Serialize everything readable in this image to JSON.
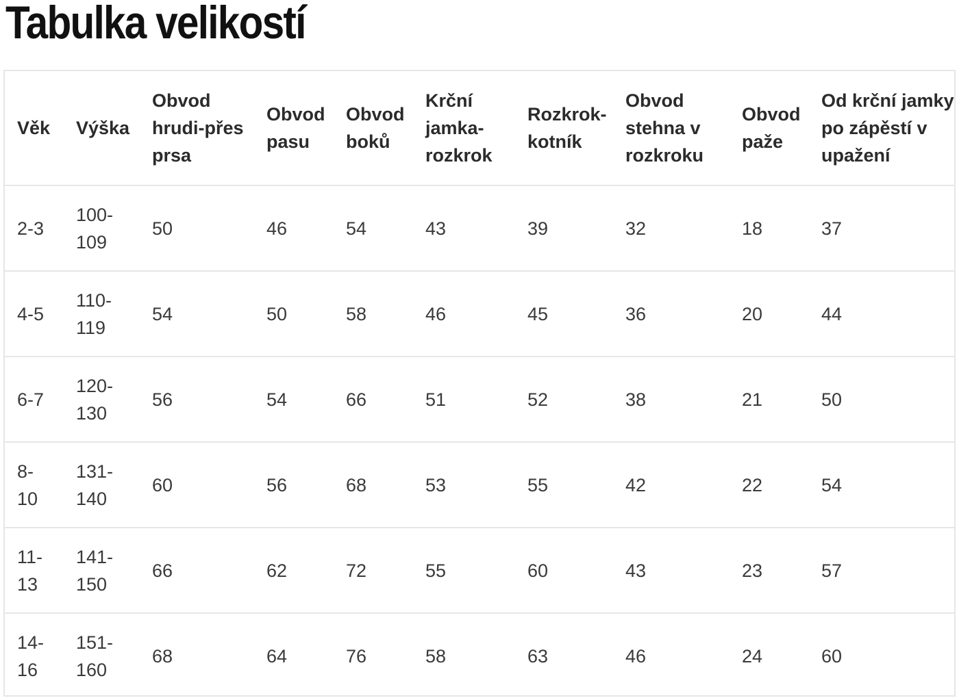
{
  "title": "Tabulka velikostí",
  "table": {
    "headers": [
      "Věk",
      "Výška",
      "Obvod hrudi-přes prsa",
      "Obvod pasu",
      "Obvod boků",
      "Krční jamka-rozkrok",
      "Rozkrok-kotník",
      "Obvod stehna v rozkroku",
      "Obvod paže",
      "Od krční jamky po zápěstí v upažení"
    ],
    "header_lines": [
      [
        "Věk"
      ],
      [
        "Výška"
      ],
      [
        "Obvod",
        "hrudi-přes",
        "prsa"
      ],
      [
        "Obvod",
        "pasu"
      ],
      [
        "Obvod",
        "boků"
      ],
      [
        "Krční",
        "jamka-",
        "rozkrok"
      ],
      [
        "Rozkrok-",
        "kotník"
      ],
      [
        "Obvod",
        "stehna v",
        "rozkroku"
      ],
      [
        "Obvod",
        "paže"
      ],
      [
        "Od krční jamky",
        "po zápěstí v",
        "upažení"
      ]
    ],
    "rows": [
      [
        "2-3",
        "100-109",
        "50",
        "46",
        "54",
        "43",
        "39",
        "32",
        "18",
        "37"
      ],
      [
        "4-5",
        "110-119",
        "54",
        "50",
        "58",
        "46",
        "45",
        "36",
        "20",
        "44"
      ],
      [
        "6-7",
        "120-130",
        "56",
        "54",
        "66",
        "51",
        "52",
        "38",
        "21",
        "50"
      ],
      [
        "8-10",
        "131-140",
        "60",
        "56",
        "68",
        "53",
        "55",
        "42",
        "22",
        "54"
      ],
      [
        "11-13",
        "141-150",
        "66",
        "62",
        "72",
        "55",
        "60",
        "43",
        "23",
        "57"
      ],
      [
        "14-16",
        "151-160",
        "68",
        "64",
        "76",
        "58",
        "63",
        "46",
        "24",
        "60"
      ]
    ],
    "row_lines": [
      [
        [
          "2-3"
        ],
        [
          "100-",
          "109"
        ]
      ],
      [
        [
          "4-5"
        ],
        [
          "110-",
          "119"
        ]
      ],
      [
        [
          "6-7"
        ],
        [
          "120-",
          "130"
        ]
      ],
      [
        [
          "8-",
          "10"
        ],
        [
          "131-",
          "140"
        ]
      ],
      [
        [
          "11-",
          "13"
        ],
        [
          "141-",
          "150"
        ]
      ],
      [
        [
          "14-",
          "16"
        ],
        [
          "151-",
          "160"
        ]
      ]
    ]
  }
}
